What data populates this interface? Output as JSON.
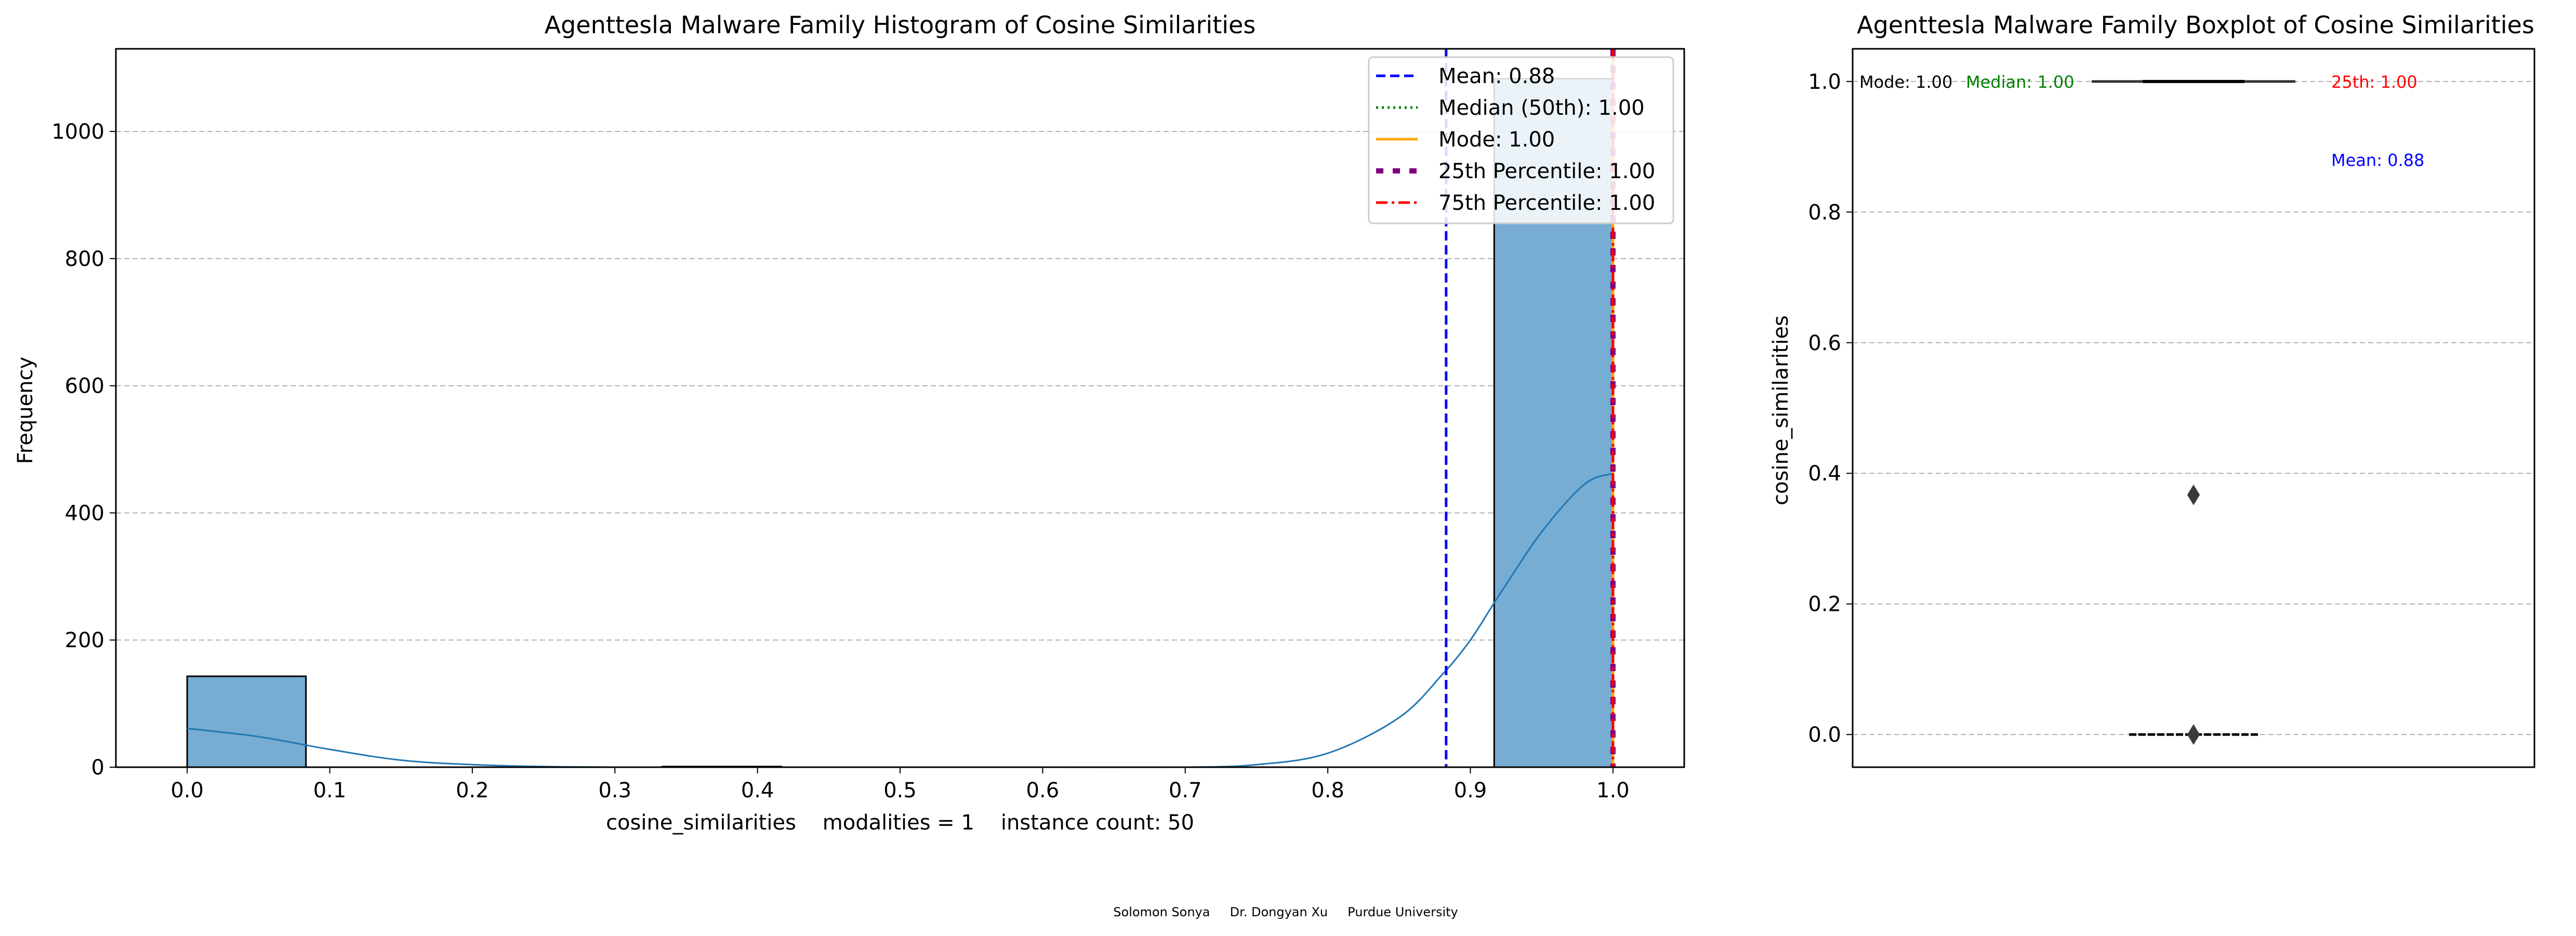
{
  "footer_credit": "Solomon Sonya     Dr. Dongyan Xu     Purdue University",
  "chart_data": [
    {
      "type": "bar",
      "title": "Agenttesla Malware Family Histogram of Cosine Similarities",
      "xlabel": "cosine_similarities    modalities = 1    instance count: 50",
      "ylabel": "Frequency",
      "xlim": [
        -0.05,
        1.05
      ],
      "ylim": [
        0,
        1130
      ],
      "xticks": [
        "0.0",
        "0.1",
        "0.2",
        "0.3",
        "0.4",
        "0.5",
        "0.6",
        "0.7",
        "0.8",
        "0.9",
        "1.0"
      ],
      "yticks": [
        "0",
        "200",
        "400",
        "600",
        "800",
        "1000"
      ],
      "grid": "y",
      "bins": [
        {
          "x0": 0.0,
          "x1": 0.0833,
          "count": 143
        },
        {
          "x0": 0.0833,
          "x1": 0.1667,
          "count": 0
        },
        {
          "x0": 0.1667,
          "x1": 0.25,
          "count": 0
        },
        {
          "x0": 0.25,
          "x1": 0.3333,
          "count": 0
        },
        {
          "x0": 0.3333,
          "x1": 0.4167,
          "count": 1
        },
        {
          "x0": 0.4167,
          "x1": 0.5,
          "count": 0
        },
        {
          "x0": 0.5,
          "x1": 0.5833,
          "count": 0
        },
        {
          "x0": 0.5833,
          "x1": 0.6667,
          "count": 0
        },
        {
          "x0": 0.6667,
          "x1": 0.75,
          "count": 0
        },
        {
          "x0": 0.75,
          "x1": 0.8333,
          "count": 0
        },
        {
          "x0": 0.8333,
          "x1": 0.9167,
          "count": 0
        },
        {
          "x0": 0.9167,
          "x1": 1.0,
          "count": 1083
        }
      ],
      "kde": {
        "x": [
          0.0,
          0.05,
          0.1,
          0.15,
          0.2,
          0.25,
          0.3,
          0.4,
          0.5,
          0.6,
          0.7,
          0.75,
          0.8,
          0.85,
          0.88,
          0.9,
          0.92,
          0.95,
          0.98,
          1.0
        ],
        "y": [
          61,
          48,
          28,
          11,
          4,
          1,
          0,
          0,
          0,
          0,
          0,
          4,
          22,
          78,
          145,
          200,
          270,
          370,
          445,
          462
        ]
      },
      "reference_lines": [
        {
          "label": "Mean: 0.88",
          "x": 0.883,
          "color": "#0000ff",
          "style": "dashed"
        },
        {
          "label": "Median (50th): 1.00",
          "x": 1.0,
          "color": "#008000",
          "style": "dotted"
        },
        {
          "label": "Mode: 1.00",
          "x": 1.0,
          "color": "#ffa500",
          "style": "solid"
        },
        {
          "label": "25th Percentile: 1.00",
          "x": 1.0,
          "color": "#800080",
          "style": "dash-thick"
        },
        {
          "label": "75th Percentile: 1.00",
          "x": 1.0,
          "color": "#ff0000",
          "style": "dashdot"
        }
      ],
      "legend_position": "top-right",
      "colors": {
        "bars": "#77acd3",
        "bar_edge": "#000000",
        "kde": "#1f77b4"
      }
    },
    {
      "type": "box",
      "title": "Agenttesla Malware Family Boxplot of Cosine Similarities",
      "xlabel": "",
      "ylabel": "cosine_similarities",
      "ylim": [
        -0.05,
        1.05
      ],
      "yticks": [
        "0.0",
        "0.2",
        "0.4",
        "0.6",
        "0.8",
        "1.0"
      ],
      "grid": "y",
      "box": {
        "q1": 1.0,
        "median": 1.0,
        "q3": 1.0,
        "whisker_low": 1.0,
        "whisker_high": 1.0
      },
      "outliers": [
        0.367,
        0.0
      ],
      "annotations": [
        {
          "text": "Mode: 1.00",
          "value": 1.0,
          "color": "#000000"
        },
        {
          "text": "Median: 1.00",
          "value": 1.0,
          "color": "#008000"
        },
        {
          "text": "25th: 1.00",
          "value": 1.0,
          "color": "#ff0000"
        },
        {
          "text": "Mean: 0.88",
          "value": 0.88,
          "color": "#0000ff"
        }
      ]
    }
  ]
}
